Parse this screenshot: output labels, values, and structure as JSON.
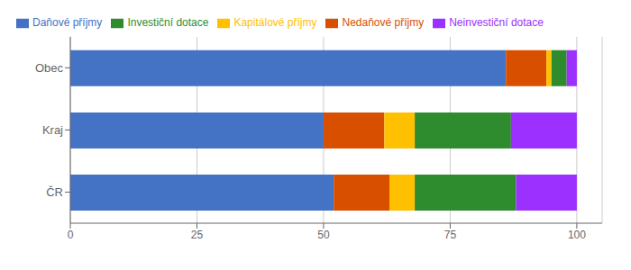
{
  "chart_data": {
    "type": "bar",
    "orientation": "horizontal",
    "stacked": true,
    "categories": [
      "Obec",
      "Kraj",
      "ČR"
    ],
    "series": [
      {
        "name": "Daňové příjmy",
        "color": "#4472C4",
        "values": [
          86,
          50,
          52
        ]
      },
      {
        "name": "Nedaňové příjmy",
        "color": "#D94F00",
        "values": [
          8,
          12,
          11
        ]
      },
      {
        "name": "Kapitálové příjmy",
        "color": "#FFC000",
        "values": [
          1,
          6,
          5
        ]
      },
      {
        "name": "Investiční dotace",
        "color": "#2E8B2E",
        "values": [
          3,
          19,
          20
        ]
      },
      {
        "name": "Neinvestiční dotace",
        "color": "#9B30FF",
        "values": [
          2,
          13,
          12
        ]
      }
    ],
    "xlim": [
      0,
      105
    ],
    "xticks": [
      0,
      25,
      50,
      75,
      100
    ],
    "grid": true,
    "legend": "top left"
  }
}
